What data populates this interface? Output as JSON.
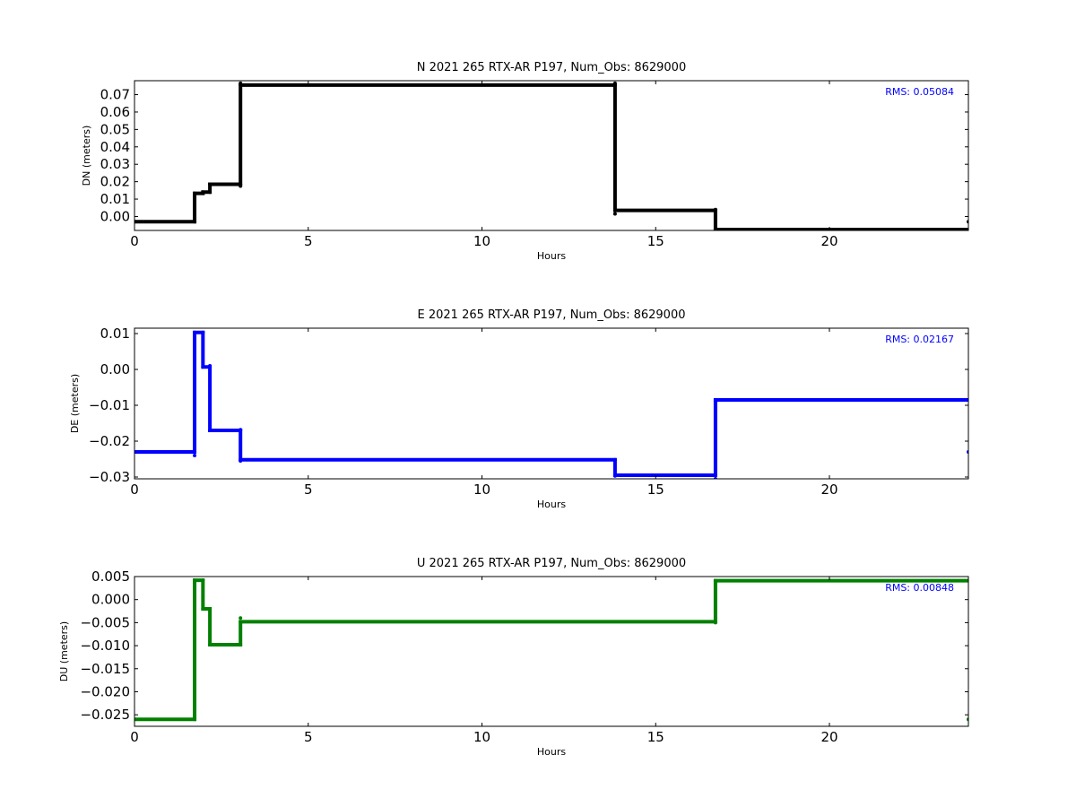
{
  "chart_data": [
    {
      "type": "line",
      "title": "N 2021 265 RTX-AR  P197, Num_Obs: 8629000",
      "xlabel": "Hours",
      "ylabel": "DN (meters)",
      "xlim": [
        0,
        24
      ],
      "ylim": [
        -0.008,
        0.078
      ],
      "xticks": [
        0,
        5,
        10,
        15,
        20
      ],
      "xtick_labels": [
        "0",
        "5",
        "10",
        "15",
        "20"
      ],
      "yticks": [
        0.0,
        0.01,
        0.02,
        0.03,
        0.04,
        0.05,
        0.06,
        0.07
      ],
      "ytick_labels": [
        "0.00",
        "0.01",
        "0.02",
        "0.03",
        "0.04",
        "0.05",
        "0.06",
        "0.07"
      ],
      "grid": false,
      "annotation": "RMS:  0.05084",
      "annotation_color": "#0000ff",
      "series": [
        {
          "color": "#000000",
          "x": [
            0,
            1.73,
            1.73,
            1.97,
            1.97,
            2.17,
            2.17,
            3.05,
            3.05,
            13.83,
            13.83,
            16.72,
            16.72,
            24.0
          ],
          "y": [
            -0.003,
            -0.003,
            0.0133,
            0.0133,
            0.014,
            0.014,
            0.0185,
            0.0185,
            0.0755,
            0.0755,
            0.0035,
            0.0035,
            -0.0075,
            -0.0075
          ],
          "outliers": [
            [
              1.73,
              -0.0028
            ],
            [
              3.05,
              0.0175
            ],
            [
              3.05,
              0.0765
            ],
            [
              13.83,
              0.0765
            ],
            [
              13.83,
              0.0015
            ],
            [
              16.72,
              0.004
            ],
            [
              24.0,
              -0.003
            ]
          ]
        }
      ]
    },
    {
      "type": "line",
      "title": "E 2021 265 RTX-AR  P197, Num_Obs: 8629000",
      "xlabel": "Hours",
      "ylabel": "DE (meters)",
      "xlim": [
        0,
        24
      ],
      "ylim": [
        -0.0305,
        0.0115
      ],
      "xticks": [
        0,
        5,
        10,
        15,
        20
      ],
      "xtick_labels": [
        "0",
        "5",
        "10",
        "15",
        "20"
      ],
      "yticks": [
        -0.03,
        -0.02,
        -0.01,
        0.0,
        0.01
      ],
      "ytick_labels": [
        "−0.03",
        "−0.02",
        "−0.01",
        "0.00",
        "0.01"
      ],
      "grid": false,
      "annotation": "RMS:  0.02167",
      "annotation_color": "#0000ff",
      "series": [
        {
          "color": "#0000ff",
          "x": [
            0,
            1.73,
            1.73,
            1.97,
            1.97,
            2.17,
            2.17,
            3.05,
            3.05,
            13.83,
            13.83,
            16.72,
            16.72,
            24.0
          ],
          "y": [
            -0.023,
            -0.023,
            0.0103,
            0.0103,
            0.0007,
            0.0007,
            -0.017,
            -0.017,
            -0.0252,
            -0.0252,
            -0.0295,
            -0.0295,
            -0.0085,
            -0.0085
          ],
          "outliers": [
            [
              1.73,
              -0.024
            ],
            [
              2.17,
              0.001
            ],
            [
              3.05,
              -0.0168
            ],
            [
              3.05,
              -0.0255
            ],
            [
              13.83,
              -0.0297
            ],
            [
              16.72,
              -0.0305
            ],
            [
              16.72,
              -0.009
            ],
            [
              24.0,
              -0.023
            ]
          ]
        }
      ]
    },
    {
      "type": "line",
      "title": "U 2021 265 RTX-AR  P197, Num_Obs: 8629000",
      "xlabel": "Hours",
      "ylabel": "DU (meters)",
      "xlim": [
        0,
        24
      ],
      "ylim": [
        -0.0275,
        0.005
      ],
      "xticks": [
        0,
        5,
        10,
        15,
        20
      ],
      "xtick_labels": [
        "0",
        "5",
        "10",
        "15",
        "20"
      ],
      "yticks": [
        -0.025,
        -0.02,
        -0.015,
        -0.01,
        -0.005,
        0.0,
        0.005
      ],
      "ytick_labels": [
        "−0.025",
        "−0.020",
        "−0.015",
        "−0.010",
        "−0.005",
        "0.000",
        "0.005"
      ],
      "grid": false,
      "annotation": "RMS:  0.00848",
      "annotation_color": "#0000ff",
      "series": [
        {
          "color": "#008000",
          "x": [
            0,
            1.73,
            1.73,
            1.97,
            1.97,
            2.17,
            2.17,
            3.05,
            3.05,
            16.72,
            16.72,
            24.0
          ],
          "y": [
            -0.026,
            -0.026,
            0.0042,
            0.0042,
            -0.002,
            -0.002,
            -0.0098,
            -0.0098,
            -0.0048,
            -0.0048,
            0.0041,
            0.0041
          ],
          "outliers": [
            [
              3.05,
              -0.004
            ],
            [
              16.72,
              -0.005
            ],
            [
              24.0,
              -0.026
            ]
          ]
        }
      ]
    }
  ]
}
